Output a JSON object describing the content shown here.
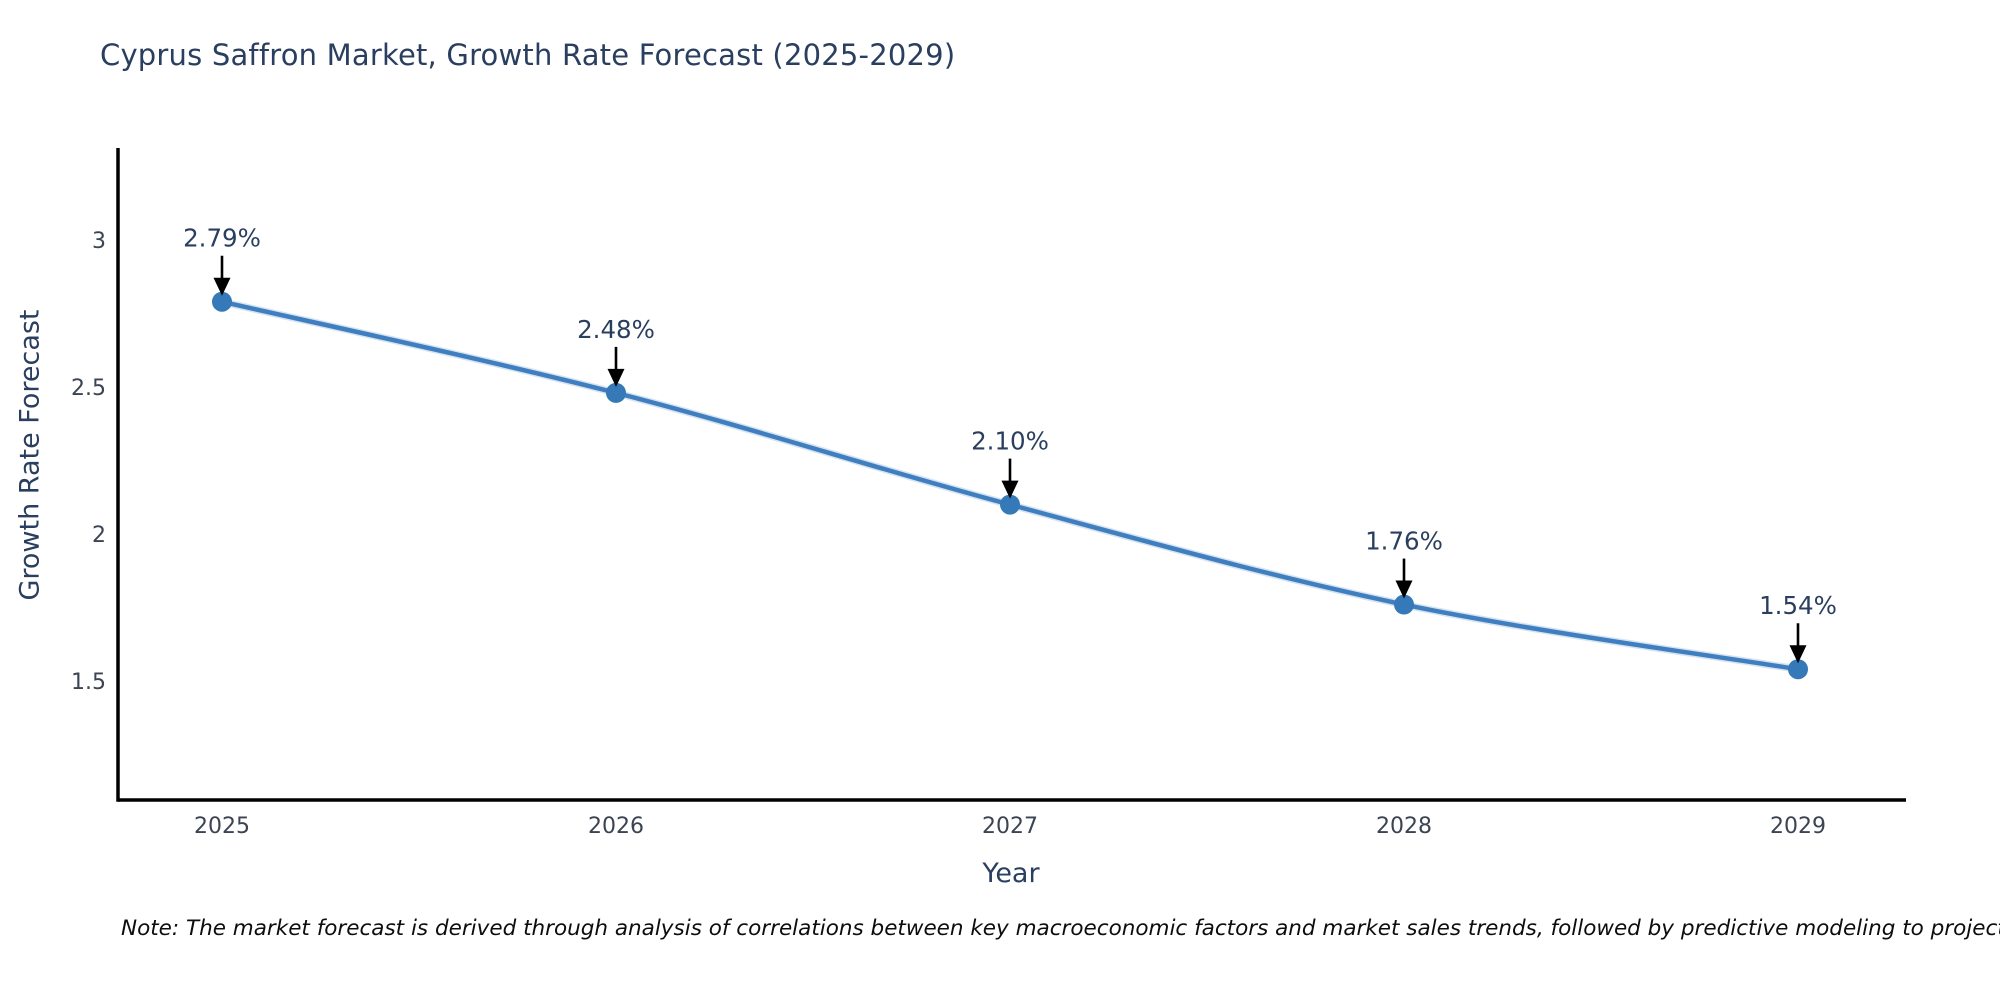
{
  "page": {
    "background_color": "#ffffff"
  },
  "chart_data": {
    "type": "line",
    "title": "Cyprus Saffron Market, Growth Rate Forecast (2025-2029)",
    "xlabel": "Year",
    "ylabel": "Growth Rate Forecast",
    "categories": [
      2025,
      2026,
      2027,
      2028,
      2029
    ],
    "series": [
      {
        "name": "Growth Rate Forecast",
        "values": [
          2.79,
          2.48,
          2.1,
          1.76,
          1.54
        ]
      }
    ],
    "point_labels": [
      "2.79%",
      "2.48%",
      "2.10%",
      "1.76%",
      "1.54%"
    ],
    "yticks": [
      3,
      2.5,
      2,
      1.5
    ],
    "ytick_labels": [
      "3",
      "2.5",
      "2",
      "1.5"
    ],
    "xtick_labels": [
      "2025",
      "2026",
      "2027",
      "2028",
      "2029"
    ],
    "ylim": [
      1.1,
      3.38
    ],
    "grid": false,
    "legend_position": "none",
    "annotations_have_arrows": true,
    "colors": {
      "line": "#3f7fbf",
      "marker": "#3579b8",
      "arrow": "#000000",
      "axis_spine": "#010101",
      "title_text": "#2a3f5f",
      "axis_label_text": "#2a3f5f",
      "tick_text": "#3b4453",
      "annotation_text": "#2a3f5f"
    }
  },
  "note": {
    "text": "Note: The market forecast is derived through analysis of correlations between key macroeconomic factors and market sales trends, followed by predictive modeling to project future sales"
  }
}
